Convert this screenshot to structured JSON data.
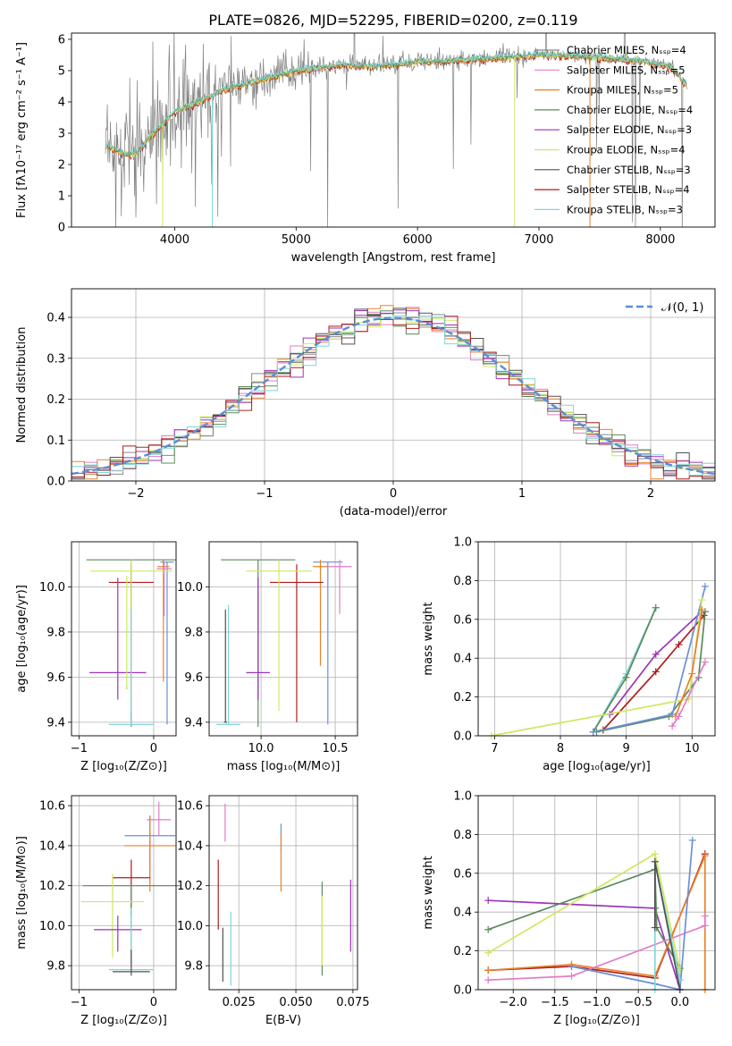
{
  "title": "PLATE=0826, MJD=52295, FIBERID=0200, z=0.119",
  "colors": {
    "ChabMILES": "#8a8a8a",
    "SalpMILES": "#e27cc6",
    "KroMILES": "#e8822a",
    "ChabELODIE": "#5c8a5c",
    "SalpELODIE": "#9b34b8",
    "KroELODIE": "#cfe860",
    "ChabSTELIB": "#505050",
    "SalpSTELIB": "#b01c1c",
    "KroSTELIB": "#7fd6da",
    "gauss": "#5b8dd6",
    "blue": "#6a90d8"
  },
  "chart_data": [
    {
      "type": "line",
      "id": "spectrum",
      "xlabel": "wavelength [Angstrom, rest frame]",
      "ylabel": "Flux [fλ10⁻¹⁷ erg cm⁻² s⁻¹ A⁻¹]",
      "xlim": [
        3150,
        8450
      ],
      "ylim": [
        0,
        6.2
      ],
      "xticks": [
        4000,
        5000,
        6000,
        7000,
        8000
      ],
      "yticks": [
        0,
        1,
        2,
        3,
        4,
        5,
        6
      ],
      "legend_position": "top-right",
      "data_trend": {
        "x": [
          3450,
          3600,
          3700,
          3800,
          3900,
          4000,
          4200,
          4400,
          4600,
          4800,
          5000,
          5200,
          5400,
          5600,
          5800,
          6000,
          6200,
          6400,
          6600,
          6800,
          7000,
          7200,
          7400,
          7600,
          7800,
          8000,
          8100,
          8200
        ],
        "y": [
          2.6,
          2.3,
          2.4,
          2.9,
          3.3,
          3.7,
          4.0,
          4.4,
          4.6,
          4.8,
          5.0,
          5.1,
          5.2,
          5.15,
          5.2,
          5.3,
          5.3,
          5.35,
          5.4,
          5.45,
          5.5,
          5.5,
          5.45,
          5.4,
          5.35,
          5.2,
          5.1,
          4.6
        ]
      },
      "series": [
        {
          "name": "Chabrier MILES, Nₛₛₚ=4",
          "color_key": "ChabMILES"
        },
        {
          "name": "Salpeter MILES, Nₛₛₚ=5",
          "color_key": "SalpMILES"
        },
        {
          "name": "Kroupa MILES, Nₛₛₚ=5",
          "color_key": "KroMILES"
        },
        {
          "name": "Chabrier ELODIE, Nₛₛₚ=4",
          "color_key": "ChabELODIE"
        },
        {
          "name": "Salpeter ELODIE, Nₛₛₚ=3",
          "color_key": "SalpELODIE"
        },
        {
          "name": "Kroupa ELODIE, Nₛₛₚ=4",
          "color_key": "KroELODIE"
        },
        {
          "name": "Chabrier STELIB, Nₛₛₚ=3",
          "color_key": "ChabSTELIB"
        },
        {
          "name": "Salpeter STELIB, Nₛₛₚ=4",
          "color_key": "SalpSTELIB"
        },
        {
          "name": "Kroupa STELIB, Nₛₛₚ=3",
          "color_key": "KroSTELIB"
        }
      ]
    },
    {
      "type": "histogram",
      "id": "residuals",
      "xlabel": "(data-model)/error",
      "ylabel": "Normed distribution",
      "xlim": [
        -2.5,
        2.5
      ],
      "ylim": [
        0,
        0.47
      ],
      "xticks": [
        -2,
        -1,
        0,
        1,
        2
      ],
      "yticks": [
        0.0,
        0.1,
        0.2,
        0.3,
        0.4
      ],
      "grid": true,
      "bin_width": 0.1,
      "reference_curve": {
        "name": "𝒩(0, 1)",
        "mean": 0,
        "sigma": 1,
        "style": "dashed"
      },
      "legend_position": "top-right"
    },
    {
      "type": "errorbar",
      "id": "age_vs_Z",
      "xlabel": "Z [log₁₀(Z/Z⊙)]",
      "ylabel": "age  [log₁₀(age/yr)]",
      "xlim": [
        -1.1,
        0.3
      ],
      "ylim": [
        9.34,
        10.2
      ],
      "xticks": [
        -1,
        0
      ],
      "yticks": [
        9.4,
        9.6,
        9.8,
        10.0
      ],
      "grid": true,
      "points": [
        {
          "x": 0.18,
          "xerr": 0.09,
          "ylo": 9.39,
          "yhi": 10.11,
          "y": 10.11,
          "color_key": "blue"
        },
        {
          "x": 0.13,
          "xerr": 0.08,
          "ylo": 9.58,
          "yhi": 10.12,
          "y": 10.09,
          "color_key": "KroMILES"
        },
        {
          "x": 0.14,
          "xerr": 0.1,
          "ylo": 9.87,
          "yhi": 10.11,
          "y": 10.08,
          "color_key": "SalpMILES"
        },
        {
          "x": -0.3,
          "xerr": 0.3,
          "ylo": 9.4,
          "yhi": 10.1,
          "y": 10.02,
          "color_key": "SalpSTELIB"
        },
        {
          "x": -0.3,
          "xerr": 0.6,
          "ylo": 9.38,
          "yhi": 10.12,
          "y": 10.12,
          "color_key": "ChabELODIE"
        },
        {
          "x": -0.3,
          "xerr": 0.55,
          "ylo": 9.45,
          "yhi": 10.12,
          "y": 10.07,
          "color_key": "KroELODIE"
        },
        {
          "x": -0.48,
          "xerr": 0.38,
          "ylo": 9.5,
          "yhi": 10.04,
          "y": 9.62,
          "color_key": "SalpELODIE"
        },
        {
          "x": -0.3,
          "xerr": 0.3,
          "ylo": 9.39,
          "yhi": 9.9,
          "y": 9.39,
          "color_key": "KroSTELIB"
        },
        {
          "x": -0.36,
          "xerr": 0.02,
          "ylo": 9.55,
          "yhi": 10.05,
          "y": 9.55,
          "color_key": "KroELODIE"
        }
      ]
    },
    {
      "type": "errorbar",
      "id": "age_vs_mass",
      "xlabel": "mass [log₁₀(M/M⊙)]",
      "ylabel": "",
      "xlim": [
        9.65,
        10.65
      ],
      "ylim": [
        9.34,
        10.2
      ],
      "xticks": [
        10.0,
        10.5
      ],
      "yticks": [
        9.4,
        9.6,
        9.8,
        10.0
      ],
      "grid": true,
      "points": [
        {
          "x": 10.45,
          "xerr": 0.1,
          "ylo": 9.39,
          "yhi": 10.11,
          "y": 10.11,
          "color_key": "blue"
        },
        {
          "x": 10.4,
          "xerr": 0.05,
          "ylo": 9.65,
          "yhi": 10.12,
          "y": 10.09,
          "color_key": "KroMILES"
        },
        {
          "x": 10.53,
          "xerr": 0.08,
          "ylo": 9.88,
          "yhi": 10.12,
          "y": 10.09,
          "color_key": "SalpMILES"
        },
        {
          "x": 10.24,
          "xerr": 0.18,
          "ylo": 9.4,
          "yhi": 10.1,
          "y": 10.02,
          "color_key": "SalpSTELIB"
        },
        {
          "x": 9.98,
          "xerr": 0.25,
          "ylo": 9.38,
          "yhi": 10.12,
          "y": 10.12,
          "color_key": "ChabELODIE"
        },
        {
          "x": 10.12,
          "xerr": 0.22,
          "ylo": 9.45,
          "yhi": 10.12,
          "y": 10.07,
          "color_key": "KroELODIE"
        },
        {
          "x": 9.98,
          "xerr": 0.08,
          "ylo": 9.5,
          "yhi": 10.04,
          "y": 9.62,
          "color_key": "SalpELODIE"
        },
        {
          "x": 9.78,
          "xerr": 0.08,
          "ylo": 9.39,
          "yhi": 9.92,
          "y": 9.39,
          "color_key": "KroSTELIB"
        },
        {
          "x": 9.76,
          "xerr": 0.01,
          "ylo": 9.4,
          "yhi": 9.9,
          "y": 9.4,
          "color_key": "ChabSTELIB"
        }
      ]
    },
    {
      "type": "line",
      "id": "massweight_vs_age",
      "xlabel": "age  [log₁₀(age/yr)]",
      "ylabel": "mass weight",
      "xlim": [
        6.75,
        10.35
      ],
      "ylim": [
        0,
        1.0
      ],
      "xticks": [
        7,
        8,
        9,
        10
      ],
      "yticks": [
        0.0,
        0.2,
        0.4,
        0.6,
        0.8,
        1.0
      ],
      "grid": true,
      "series": [
        {
          "color_key": "KroSTELIB",
          "x": [
            8.5,
            9.0,
            9.45
          ],
          "y": [
            0.02,
            0.32,
            0.66
          ]
        },
        {
          "color_key": "ChabELODIE",
          "x": [
            8.5,
            9.0,
            9.45
          ],
          "y": [
            0.02,
            0.3,
            0.66
          ]
        },
        {
          "color_key": "SalpELODIE",
          "x": [
            8.75,
            9.45,
            10.15
          ],
          "y": [
            0.11,
            0.42,
            0.64
          ]
        },
        {
          "color_key": "SalpSTELIB",
          "x": [
            8.65,
            9.45,
            9.8,
            10.18
          ],
          "y": [
            0.03,
            0.33,
            0.47,
            0.62
          ]
        },
        {
          "color_key": "ChabELODIE",
          "x": [
            8.55,
            9.65,
            10.1,
            10.2
          ],
          "y": [
            0.02,
            0.1,
            0.3,
            0.64
          ]
        },
        {
          "color_key": "blue",
          "x": [
            8.5,
            9.7,
            10.2
          ],
          "y": [
            0.02,
            0.11,
            0.77
          ]
        },
        {
          "color_key": "KroELODIE",
          "x": [
            6.95,
            9.95,
            10.15
          ],
          "y": [
            0.0,
            0.19,
            0.7
          ]
        },
        {
          "color_key": "KroMILES",
          "x": [
            9.75,
            10.0,
            10.15
          ],
          "y": [
            0.1,
            0.32,
            0.65
          ]
        },
        {
          "color_key": "SalpMILES",
          "x": [
            9.7,
            9.8,
            10.2
          ],
          "y": [
            0.05,
            0.1,
            0.38
          ]
        }
      ]
    },
    {
      "type": "errorbar",
      "id": "mass_vs_Z",
      "xlabel": "Z [log₁₀(Z/Z⊙)]",
      "ylabel": "mass [log₁₀(M/M⊙)]",
      "xlim": [
        -1.1,
        0.3
      ],
      "ylim": [
        9.68,
        10.65
      ],
      "xticks": [
        -1,
        0
      ],
      "yticks": [
        9.8,
        10.0,
        10.2,
        10.4,
        10.6
      ],
      "grid": true,
      "points": [
        {
          "x": 0.07,
          "xerr": 0.16,
          "ylo": 10.45,
          "yhi": 10.62,
          "y": 10.53,
          "color_key": "SalpMILES"
        },
        {
          "x": -0.05,
          "xerr": 0.34,
          "ylo": 10.22,
          "yhi": 10.55,
          "y": 10.45,
          "color_key": "blue"
        },
        {
          "x": -0.05,
          "xerr": 0.34,
          "ylo": 10.17,
          "yhi": 10.55,
          "y": 10.4,
          "color_key": "KroMILES"
        },
        {
          "x": -0.3,
          "xerr": 0.25,
          "ylo": 10.05,
          "yhi": 10.33,
          "y": 10.24,
          "color_key": "SalpSTELIB"
        },
        {
          "x": -0.3,
          "xerr": 0.65,
          "ylo": 9.8,
          "yhi": 10.2,
          "y": 10.2,
          "color_key": "ChabELODIE"
        },
        {
          "x": -0.55,
          "xerr": 0.42,
          "ylo": 9.84,
          "yhi": 10.26,
          "y": 10.12,
          "color_key": "KroELODIE"
        },
        {
          "x": -0.48,
          "xerr": 0.32,
          "ylo": 9.87,
          "yhi": 10.05,
          "y": 9.98,
          "color_key": "SalpELODIE"
        },
        {
          "x": -0.3,
          "xerr": 0.3,
          "ylo": 9.8,
          "yhi": 10.09,
          "y": 9.78,
          "color_key": "KroSTELIB"
        },
        {
          "x": -0.3,
          "xerr": 0.25,
          "ylo": 9.75,
          "yhi": 9.88,
          "y": 9.77,
          "color_key": "ChabSTELIB"
        }
      ]
    },
    {
      "type": "errorbar",
      "id": "mass_vs_ebv",
      "xlabel": "E(B-V)",
      "ylabel": "",
      "xlim": [
        0.012,
        0.077
      ],
      "ylim": [
        9.68,
        10.65
      ],
      "xticks": [
        0.025,
        0.05,
        0.075
      ],
      "yticks": [
        9.8,
        10.0,
        10.2,
        10.4,
        10.6
      ],
      "grid": true,
      "points": [
        {
          "x": 0.019,
          "ylo": 10.42,
          "yhi": 10.61,
          "color_key": "SalpMILES"
        },
        {
          "x": 0.0435,
          "ylo": 10.37,
          "yhi": 10.51,
          "color_key": "blue"
        },
        {
          "x": 0.0435,
          "ylo": 10.17,
          "yhi": 10.46,
          "color_key": "KroMILES"
        },
        {
          "x": 0.016,
          "ylo": 9.98,
          "yhi": 10.33,
          "color_key": "SalpSTELIB"
        },
        {
          "x": 0.0615,
          "ylo": 9.75,
          "yhi": 10.22,
          "color_key": "ChabELODIE"
        },
        {
          "x": 0.0615,
          "ylo": 9.8,
          "yhi": 10.15,
          "color_key": "KroELODIE"
        },
        {
          "x": 0.074,
          "ylo": 9.87,
          "yhi": 10.23,
          "color_key": "SalpELODIE"
        },
        {
          "x": 0.0215,
          "ylo": 9.7,
          "yhi": 10.07,
          "color_key": "KroSTELIB"
        },
        {
          "x": 0.018,
          "ylo": 9.72,
          "yhi": 9.99,
          "color_key": "ChabSTELIB"
        }
      ]
    },
    {
      "type": "line",
      "id": "massweight_vs_Z",
      "xlabel": "Z [log₁₀(Z/Z⊙)]",
      "ylabel": "mass weight",
      "xlim": [
        -2.42,
        0.42
      ],
      "ylim": [
        0,
        1.0
      ],
      "xticks": [
        -2.0,
        -1.5,
        -1.0,
        -0.5,
        0.0
      ],
      "yticks": [
        0.0,
        0.2,
        0.4,
        0.6,
        0.8,
        1.0
      ],
      "grid": true,
      "series": [
        {
          "color_key": "SalpELODIE",
          "x": [
            -2.3,
            -0.3,
            0.0
          ],
          "y": [
            0.46,
            0.42,
            0.0
          ]
        },
        {
          "color_key": "ChabELODIE",
          "x": [
            -2.3,
            -0.3,
            -0.28,
            0.0
          ],
          "y": [
            0.31,
            0.62,
            0.32,
            0.11
          ]
        },
        {
          "color_key": "KroELODIE",
          "x": [
            -2.3,
            -0.3,
            0.0
          ],
          "y": [
            0.19,
            0.7,
            0.1
          ]
        },
        {
          "color_key": "SalpSTELIB",
          "x": [
            -2.3,
            -1.3,
            -0.3,
            0.3
          ],
          "y": [
            0.1,
            0.12,
            0.06,
            0.7
          ]
        },
        {
          "color_key": "KroMILES",
          "x": [
            -2.3,
            -1.3,
            -0.3,
            0.3,
            0.3
          ],
          "y": [
            0.1,
            0.13,
            0.07,
            0.69,
            0.0
          ]
        },
        {
          "color_key": "SalpMILES",
          "x": [
            -2.3,
            -1.3,
            0.3,
            0.3
          ],
          "y": [
            0.05,
            0.07,
            0.33,
            0.38
          ]
        },
        {
          "color_key": "blue",
          "x": [
            -1.3,
            -0.3,
            0.0,
            0.15
          ],
          "y": [
            0.12,
            0.03,
            0.0,
            0.77
          ]
        },
        {
          "color_key": "KroSTELIB",
          "x": [
            -0.3,
            -0.3,
            0.0
          ],
          "y": [
            0.0,
            0.66,
            0.05
          ]
        },
        {
          "color_key": "ChabSTELIB",
          "x": [
            -0.3,
            -0.3,
            0.0
          ],
          "y": [
            0.32,
            0.66,
            0.0
          ]
        }
      ]
    }
  ]
}
